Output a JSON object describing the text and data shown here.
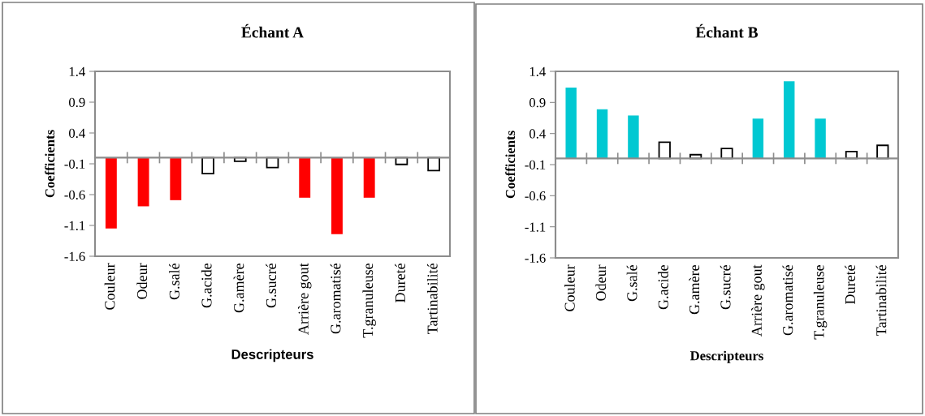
{
  "chart_data": [
    {
      "type": "bar",
      "title": "Échant A",
      "xlabel": "Descripteurs",
      "ylabel": "Coefficients",
      "categories": [
        "Couleur",
        "Odeur",
        "G.salé",
        "G.acide",
        "G.amère",
        "G.sucré",
        "Arrière gout",
        "G.aromatisé",
        "T.granuleuse",
        "Dureté",
        "Tartinabilité"
      ],
      "values": [
        -1.15,
        -0.79,
        -0.69,
        -0.26,
        -0.06,
        -0.16,
        -0.65,
        -1.24,
        -0.65,
        -0.11,
        -0.21
      ],
      "colors": [
        "#ff0000",
        "#ff0000",
        "#ff0000",
        "#ffffff",
        "#ffffff",
        "#ffffff",
        "#ff0000",
        "#ff0000",
        "#ff0000",
        "#ffffff",
        "#ffffff"
      ],
      "ylim": [
        -1.6,
        1.4
      ],
      "yticks": [
        -1.6,
        -1.1,
        -0.6,
        -0.1,
        0.4,
        0.9,
        1.4
      ],
      "grid": false
    },
    {
      "type": "bar",
      "title": "Échant B",
      "xlabel": "Descripteurs",
      "ylabel": "Coefficients",
      "categories": [
        "Couleur",
        "Odeur",
        "G.salé",
        "G.acide",
        "G.amère",
        "G.sucré",
        "Arrière gout",
        "G.aromatisé",
        "T.granuleuse",
        "Dureté",
        "Tartinabilité"
      ],
      "values": [
        1.14,
        0.79,
        0.69,
        0.26,
        0.06,
        0.16,
        0.64,
        1.24,
        0.64,
        0.11,
        0.21
      ],
      "colors": [
        "#00c8d2",
        "#00c8d2",
        "#00c8d2",
        "#ffffff",
        "#ffffff",
        "#ffffff",
        "#00c8d2",
        "#00c8d2",
        "#00c8d2",
        "#ffffff",
        "#ffffff"
      ],
      "ylim": [
        -1.6,
        1.4
      ],
      "yticks": [
        -1.6,
        -1.1,
        -0.6,
        -0.1,
        0.4,
        0.9,
        1.4
      ],
      "grid": false
    }
  ]
}
